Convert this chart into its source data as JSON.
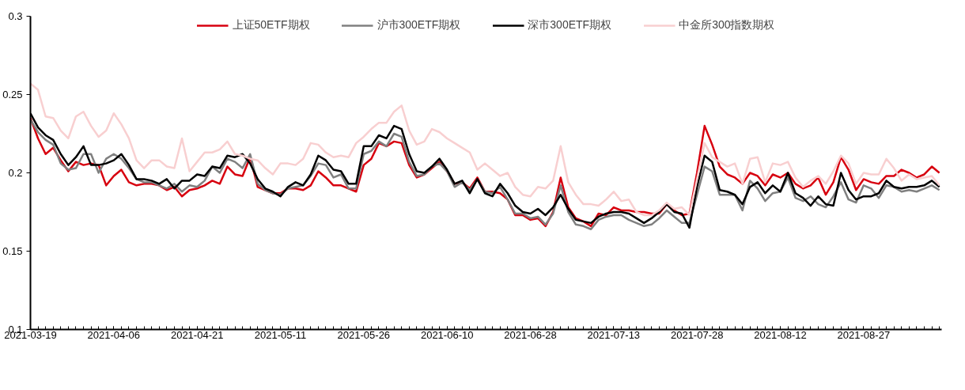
{
  "chart_data": {
    "type": "line",
    "categories": [
      "2021-03-19",
      null,
      null,
      null,
      null,
      null,
      null,
      null,
      null,
      null,
      null,
      "2021-04-06",
      null,
      null,
      null,
      null,
      null,
      null,
      null,
      null,
      null,
      null,
      "2021-04-21",
      null,
      null,
      null,
      null,
      null,
      null,
      null,
      null,
      null,
      null,
      "2021-05-11",
      null,
      null,
      null,
      null,
      null,
      null,
      null,
      null,
      null,
      null,
      "2021-05-26",
      null,
      null,
      null,
      null,
      null,
      null,
      null,
      null,
      null,
      null,
      "2021-06-10",
      null,
      null,
      null,
      null,
      null,
      null,
      null,
      null,
      null,
      null,
      "2021-06-28",
      null,
      null,
      null,
      null,
      null,
      null,
      null,
      null,
      null,
      null,
      "2021-07-13",
      null,
      null,
      null,
      null,
      null,
      null,
      null,
      null,
      null,
      null,
      "2021-07-28",
      null,
      null,
      null,
      null,
      null,
      null,
      null,
      null,
      null,
      null,
      "2021-08-12",
      null,
      null,
      null,
      null,
      null,
      null,
      null,
      null,
      null,
      null,
      "2021-08-27",
      null,
      null,
      null,
      null,
      null,
      null,
      null,
      null,
      null,
      null
    ],
    "ylim": [
      0.1,
      0.3
    ],
    "yticks": [
      0.1,
      0.15,
      0.2,
      0.25,
      0.3
    ],
    "grid": false,
    "legend": "top",
    "marker": "none",
    "line_style": "solid",
    "series": [
      {
        "name": "上证50ETF期权",
        "color": "#d7000f",
        "values": [
          0.235,
          0.222,
          0.212,
          0.216,
          0.208,
          0.201,
          0.207,
          0.205,
          0.206,
          0.205,
          0.192,
          0.198,
          0.202,
          0.194,
          0.192,
          0.193,
          0.193,
          0.192,
          0.189,
          0.191,
          0.185,
          0.189,
          0.19,
          0.192,
          0.195,
          0.193,
          0.204,
          0.199,
          0.198,
          0.21,
          0.191,
          0.189,
          0.187,
          0.187,
          0.19,
          0.19,
          0.189,
          0.192,
          0.201,
          0.197,
          0.192,
          0.192,
          0.19,
          0.188,
          0.205,
          0.209,
          0.219,
          0.217,
          0.22,
          0.219,
          0.205,
          0.197,
          0.199,
          0.203,
          0.207,
          0.201,
          0.193,
          0.194,
          0.19,
          0.197,
          0.188,
          0.188,
          0.187,
          0.183,
          0.173,
          0.173,
          0.17,
          0.171,
          0.166,
          0.175,
          0.197,
          0.178,
          0.171,
          0.169,
          0.166,
          0.174,
          0.173,
          0.178,
          0.176,
          0.176,
          0.175,
          0.175,
          0.174,
          0.174,
          0.18,
          0.176,
          0.173,
          0.174,
          0.2,
          0.23,
          0.218,
          0.204,
          0.199,
          0.197,
          0.193,
          0.2,
          0.198,
          0.192,
          0.199,
          0.197,
          0.2,
          0.193,
          0.19,
          0.192,
          0.197,
          0.186,
          0.194,
          0.21,
          0.202,
          0.189,
          0.196,
          0.194,
          0.193,
          0.198,
          0.198,
          0.202,
          0.2,
          0.197,
          0.199,
          0.204,
          0.2
        ]
      },
      {
        "name": "沪市300ETF期权",
        "color": "#808080",
        "values": [
          0.234,
          0.226,
          0.221,
          0.218,
          0.206,
          0.202,
          0.203,
          0.212,
          0.212,
          0.2,
          0.209,
          0.212,
          0.209,
          0.203,
          0.196,
          0.194,
          0.194,
          0.192,
          0.19,
          0.193,
          0.188,
          0.192,
          0.191,
          0.195,
          0.204,
          0.2,
          0.209,
          0.207,
          0.203,
          0.212,
          0.193,
          0.189,
          0.187,
          0.186,
          0.19,
          0.191,
          0.192,
          0.198,
          0.206,
          0.205,
          0.197,
          0.199,
          0.19,
          0.19,
          0.212,
          0.214,
          0.22,
          0.217,
          0.225,
          0.223,
          0.207,
          0.198,
          0.199,
          0.204,
          0.206,
          0.201,
          0.191,
          0.194,
          0.189,
          0.196,
          0.188,
          0.187,
          0.191,
          0.183,
          0.174,
          0.174,
          0.171,
          0.172,
          0.167,
          0.174,
          0.192,
          0.175,
          0.167,
          0.166,
          0.164,
          0.17,
          0.172,
          0.173,
          0.173,
          0.17,
          0.168,
          0.166,
          0.167,
          0.171,
          0.176,
          0.172,
          0.168,
          0.168,
          0.186,
          0.204,
          0.201,
          0.186,
          0.186,
          0.186,
          0.176,
          0.195,
          0.19,
          0.182,
          0.187,
          0.188,
          0.197,
          0.184,
          0.182,
          0.185,
          0.18,
          0.178,
          0.185,
          0.194,
          0.183,
          0.181,
          0.192,
          0.19,
          0.184,
          0.192,
          0.191,
          0.188,
          0.189,
          0.188,
          0.19,
          0.192,
          0.189
        ]
      },
      {
        "name": "深市300ETF期权",
        "color": "#000000",
        "values": [
          0.238,
          0.229,
          0.224,
          0.221,
          0.212,
          0.205,
          0.21,
          0.217,
          0.205,
          0.205,
          0.206,
          0.208,
          0.212,
          0.205,
          0.196,
          0.196,
          0.195,
          0.193,
          0.196,
          0.19,
          0.195,
          0.195,
          0.199,
          0.198,
          0.204,
          0.203,
          0.211,
          0.21,
          0.212,
          0.206,
          0.196,
          0.19,
          0.188,
          0.185,
          0.191,
          0.194,
          0.192,
          0.199,
          0.211,
          0.208,
          0.202,
          0.201,
          0.193,
          0.193,
          0.217,
          0.217,
          0.224,
          0.222,
          0.23,
          0.228,
          0.212,
          0.201,
          0.2,
          0.204,
          0.209,
          0.202,
          0.193,
          0.195,
          0.187,
          0.196,
          0.187,
          0.185,
          0.193,
          0.187,
          0.179,
          0.175,
          0.174,
          0.177,
          0.173,
          0.178,
          0.186,
          0.177,
          0.17,
          0.169,
          0.168,
          0.172,
          0.174,
          0.175,
          0.175,
          0.174,
          0.171,
          0.168,
          0.171,
          0.175,
          0.18,
          0.175,
          0.174,
          0.165,
          0.191,
          0.211,
          0.207,
          0.189,
          0.188,
          0.186,
          0.18,
          0.191,
          0.194,
          0.187,
          0.192,
          0.188,
          0.2,
          0.187,
          0.184,
          0.179,
          0.185,
          0.18,
          0.179,
          0.2,
          0.189,
          0.183,
          0.185,
          0.185,
          0.187,
          0.195,
          0.191,
          0.19,
          0.191,
          0.191,
          0.192,
          0.195,
          0.191
        ]
      },
      {
        "name": "中金所300指数期权",
        "color": "#f8cfd0",
        "values": [
          0.257,
          0.253,
          0.236,
          0.235,
          0.227,
          0.222,
          0.236,
          0.239,
          0.23,
          0.223,
          0.227,
          0.238,
          0.231,
          0.222,
          0.208,
          0.203,
          0.208,
          0.208,
          0.204,
          0.203,
          0.222,
          0.201,
          0.207,
          0.213,
          0.213,
          0.215,
          0.22,
          0.212,
          0.211,
          0.209,
          0.208,
          0.203,
          0.199,
          0.206,
          0.206,
          0.205,
          0.209,
          0.219,
          0.218,
          0.213,
          0.21,
          0.211,
          0.21,
          0.219,
          0.223,
          0.228,
          0.232,
          0.232,
          0.239,
          0.243,
          0.227,
          0.218,
          0.22,
          0.228,
          0.226,
          0.222,
          0.219,
          0.216,
          0.213,
          0.202,
          0.206,
          0.202,
          0.198,
          0.2,
          0.191,
          0.186,
          0.185,
          0.191,
          0.19,
          0.195,
          0.217,
          0.194,
          0.186,
          0.18,
          0.18,
          0.179,
          0.183,
          0.188,
          0.182,
          0.183,
          0.175,
          0.173,
          0.173,
          0.176,
          0.181,
          0.177,
          0.178,
          0.173,
          0.196,
          0.219,
          0.21,
          0.207,
          0.204,
          0.206,
          0.193,
          0.209,
          0.21,
          0.194,
          0.206,
          0.205,
          0.207,
          0.197,
          0.191,
          0.195,
          0.198,
          0.193,
          0.201,
          0.211,
          0.206,
          0.193,
          0.2,
          0.199,
          0.199,
          0.209,
          0.203,
          0.195,
          0.199,
          0.196,
          0.197,
          0.198,
          0.192
        ]
      }
    ]
  }
}
